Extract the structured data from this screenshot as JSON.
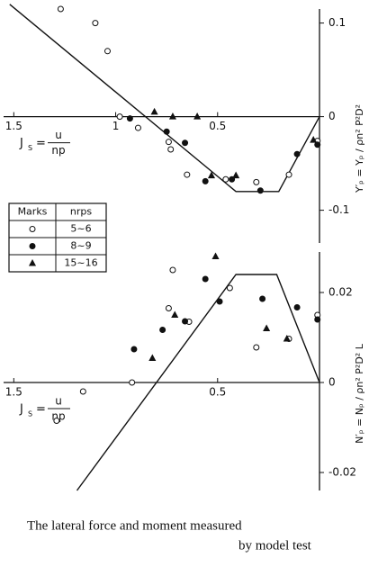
{
  "chart_data": [
    {
      "type": "scatter",
      "x_label": {
        "lhs": "J",
        "sub": "S",
        "eq": "=",
        "num": "u",
        "den": "np"
      },
      "y_label": "Y′ₚ = Yₚ / ρn² P²D²",
      "xlim": [
        1.55,
        0
      ],
      "ylim": [
        -0.135,
        0.115
      ],
      "xticks": [
        1.5,
        1.0,
        0.5
      ],
      "yticks": [
        0.1,
        0,
        -0.1
      ],
      "legend_headers": [
        "Marks",
        "nrps"
      ],
      "series": [
        {
          "name": "5~6",
          "marker": "open-circle",
          "color": "#111",
          "x": [
            1.27,
            1.1,
            1.04,
            0.98,
            0.89,
            0.74,
            0.73,
            0.65,
            0.46,
            0.31,
            0.15,
            0.01
          ],
          "values": [
            0.115,
            0.1,
            0.07,
            0,
            -0.012,
            -0.027,
            -0.035,
            -0.062,
            -0.067,
            -0.07,
            -0.062,
            -0.026
          ]
        },
        {
          "name": "8~9",
          "marker": "filled-circle",
          "color": "#111",
          "x": [
            0.93,
            0.75,
            0.66,
            0.56,
            0.43,
            0.29,
            0.11,
            0.01
          ],
          "values": [
            -0.002,
            -0.016,
            -0.028,
            -0.069,
            -0.067,
            -0.079,
            -0.04,
            -0.03
          ]
        },
        {
          "name": "15~16",
          "marker": "triangle",
          "color": "#111",
          "x": [
            0.81,
            0.72,
            0.6,
            0.53,
            0.41,
            0.03
          ],
          "values": [
            0.005,
            0,
            0,
            -0.063,
            -0.063,
            -0.025
          ]
        }
      ],
      "curve": {
        "x": [
          1.52,
          0.41,
          0.2,
          0
        ],
        "values": [
          0.12,
          -0.08,
          -0.08,
          0
        ]
      }
    },
    {
      "type": "scatter",
      "x_label": {
        "lhs": "J",
        "sub": "S",
        "eq": "=",
        "num": "u",
        "den": "np"
      },
      "y_label": "N′ₚ = Nₚ / ρn² P²D² L",
      "xlim": [
        1.55,
        0
      ],
      "ylim": [
        -0.024,
        0.029
      ],
      "xticks": [
        1.5,
        0.5
      ],
      "yticks": [
        0.02,
        0,
        -0.02
      ],
      "series": [
        {
          "name": "5~6",
          "marker": "open-circle",
          "color": "#111",
          "x": [
            1.29,
            1.16,
            0.92,
            0.74,
            0.72,
            0.64,
            0.44,
            0.31,
            0.15,
            0.01
          ],
          "values": [
            -0.0085,
            -0.002,
            0,
            0.0165,
            0.025,
            0.0135,
            0.021,
            0.0078,
            0.0097,
            0.015
          ]
        },
        {
          "name": "8~9",
          "marker": "filled-circle",
          "color": "#111",
          "x": [
            0.91,
            0.77,
            0.66,
            0.56,
            0.49,
            0.28,
            0.11,
            0.01
          ],
          "values": [
            0.0074,
            0.0117,
            0.0136,
            0.023,
            0.018,
            0.0186,
            0.0167,
            0.014
          ]
        },
        {
          "name": "15~16",
          "marker": "triangle",
          "color": "#111",
          "x": [
            0.82,
            0.71,
            0.51,
            0.26,
            0.16
          ],
          "values": [
            0.0054,
            0.015,
            0.028,
            0.012,
            0.0097
          ]
        }
      ],
      "curve": {
        "x": [
          1.19,
          0.41,
          0.21,
          0
        ],
        "values": [
          -0.024,
          0.024,
          0.024,
          0
        ]
      }
    }
  ],
  "caption": [
    "The lateral force and moment measured",
    "by model test"
  ]
}
